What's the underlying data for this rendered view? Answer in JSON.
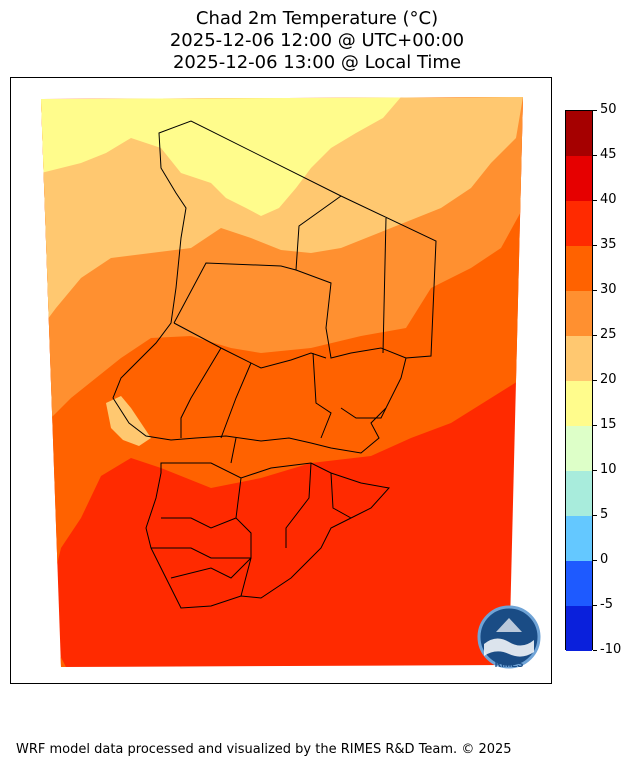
{
  "title": {
    "line1": "Chad 2m Temperature (°C)",
    "line2": "2025-12-06 12:00 @ UTC+00:00",
    "line3": "2025-12-06 13:00 @ Local Time"
  },
  "colorbar": {
    "ticks": [
      "50",
      "45",
      "40",
      "35",
      "30",
      "25",
      "20",
      "15",
      "10",
      "5",
      "0",
      "-5",
      "-10"
    ],
    "colors": [
      "#a50000",
      "#e60000",
      "#ff2a00",
      "#ff6200",
      "#ff9030",
      "#ffc870",
      "#fffc8c",
      "#ddffc8",
      "#a8ecdc",
      "#64c8ff",
      "#1e5aff",
      "#0a20dc",
      "#0000b4"
    ]
  },
  "logo": {
    "text": "RIMES"
  },
  "footer": {
    "text": "WRF model data processed and visualized by the RIMES R&D Team. © 2025"
  }
}
